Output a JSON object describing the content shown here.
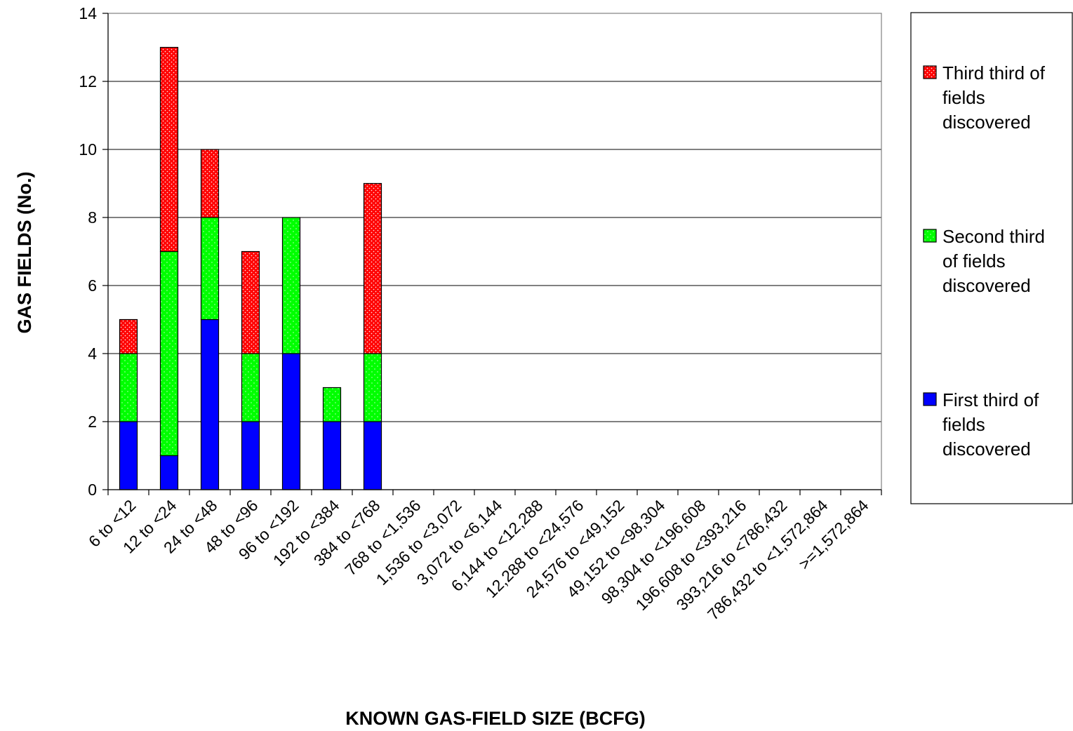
{
  "chart_data": {
    "type": "bar",
    "stacked": true,
    "title": "",
    "xlabel": "KNOWN GAS-FIELD SIZE (BCFG)",
    "ylabel": "GAS FIELDS (No.)",
    "ylim": [
      0,
      14
    ],
    "yticks": [
      0,
      2,
      4,
      6,
      8,
      10,
      12,
      14
    ],
    "grid": true,
    "legend_position": "right",
    "categories": [
      "6 to <12",
      "12 to <24",
      "24 to <48",
      "48 to <96",
      "96 to <192",
      "192 to <384",
      "384 to <768",
      "768 to <1,536",
      "1,536 to <3,072",
      "3,072 to <6,144",
      "6,144 to <12,288",
      "12,288 to <24,576",
      "24,576 to <49,152",
      "49,152 to <98,304",
      "98,304 to <196,608",
      "196,608 to <393,216",
      "393,216 to <786,432",
      "786,432 to <1,572,864",
      ">=1,572,864"
    ],
    "series": [
      {
        "name": "First third of fields discovered",
        "color": "#0000ff",
        "values": [
          2,
          1,
          5,
          2,
          4,
          2,
          2,
          0,
          0,
          0,
          0,
          0,
          0,
          0,
          0,
          0,
          0,
          0,
          0
        ]
      },
      {
        "name": "Second third of fields discovered",
        "color": "#00ff00",
        "values": [
          2,
          6,
          3,
          2,
          4,
          1,
          2,
          0,
          0,
          0,
          0,
          0,
          0,
          0,
          0,
          0,
          0,
          0,
          0
        ]
      },
      {
        "name": "Third third of fields discovered",
        "color": "#ff0000",
        "values": [
          1,
          6,
          2,
          3,
          0,
          0,
          5,
          0,
          0,
          0,
          0,
          0,
          0,
          0,
          0,
          0,
          0,
          0,
          0
        ]
      }
    ],
    "legend": [
      {
        "lines": [
          "Third third of",
          "fields",
          "discovered"
        ],
        "series": 2
      },
      {
        "lines": [
          "Second third",
          "of fields",
          "discovered"
        ],
        "series": 1
      },
      {
        "lines": [
          "First third of",
          "fields",
          "discovered"
        ],
        "series": 0
      }
    ]
  }
}
